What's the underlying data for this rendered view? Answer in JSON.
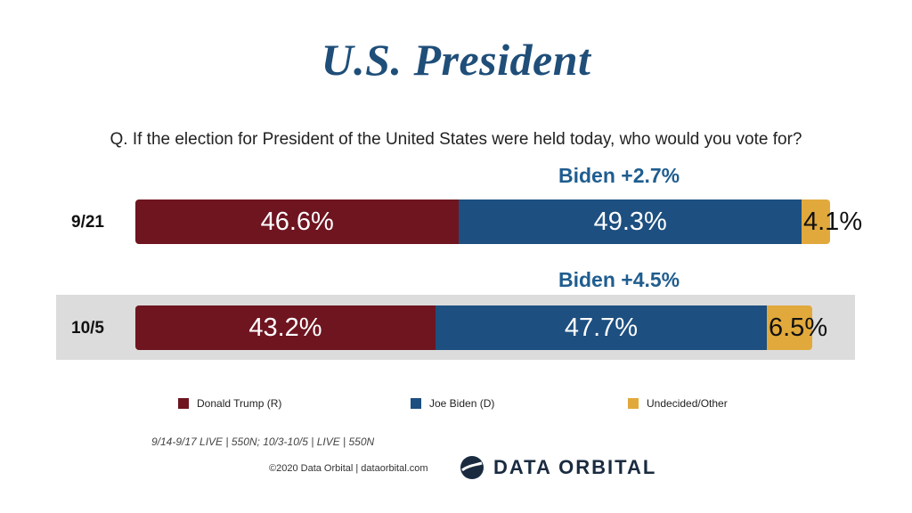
{
  "title": "U.S. President",
  "question": "Q. If the election for President of the United States were held today, who would you vote for?",
  "colors": {
    "trump": "#6e1520",
    "biden": "#1d4f80",
    "undecided": "#e1a93c",
    "title": "#1f4e79",
    "margin": "#1f5d8f"
  },
  "chart_data": {
    "type": "bar",
    "orientation": "horizontal",
    "stacked": true,
    "categories": [
      "9/21",
      "10/5"
    ],
    "series": [
      {
        "name": "Donald Trump (R)",
        "values": [
          46.6,
          43.2
        ],
        "labels": [
          "46.6%",
          "43.2%"
        ]
      },
      {
        "name": "Joe Biden (D)",
        "values": [
          49.3,
          47.7
        ],
        "labels": [
          "49.3%",
          "47.7%"
        ]
      },
      {
        "name": "Undecided/Other",
        "values": [
          4.1,
          6.5
        ],
        "labels": [
          "4.1%",
          "6.5%"
        ]
      }
    ],
    "annotations": [
      "Biden +2.7%",
      "Biden +4.5%"
    ],
    "legend_position": "bottom"
  },
  "legend": [
    "Donald Trump (R)",
    "Joe Biden (D)",
    "Undecided/Other"
  ],
  "source": "9/14-9/17 LIVE | 550N; 10/3-10/5 | LIVE | 550N",
  "copyright": "©2020 Data Orbital | dataorbital.com",
  "logo": {
    "text": "DATA ORBITAL",
    "icon": "orbital-logo-icon"
  }
}
